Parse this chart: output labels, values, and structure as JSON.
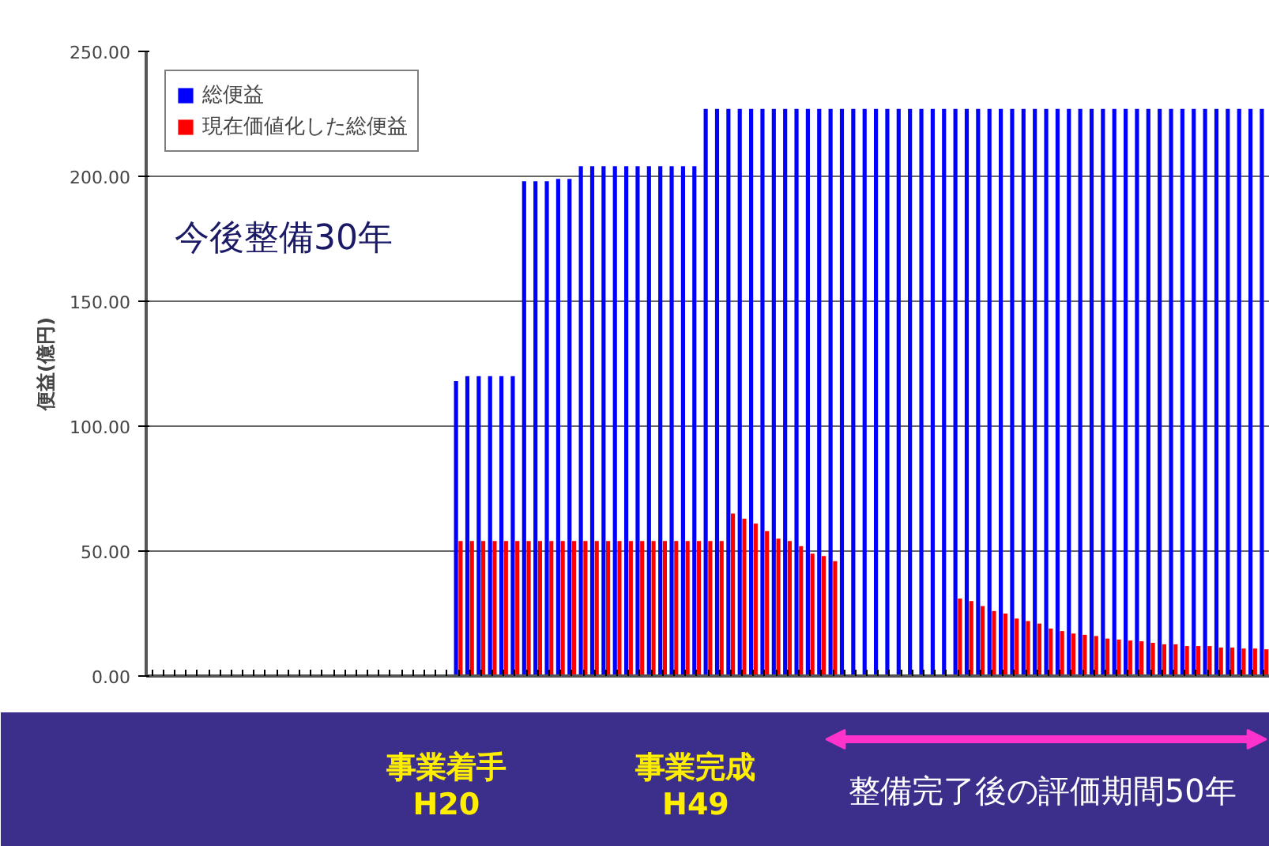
{
  "chart_data": {
    "type": "bar",
    "ylabel": "便益(億円)",
    "categories": [
      null,
      null,
      null,
      null,
      null,
      null,
      null,
      null,
      null,
      null,
      null,
      null,
      null,
      null,
      null,
      null,
      null,
      null,
      null,
      null,
      null,
      null,
      null,
      null,
      null,
      null,
      null,
      null,
      null,
      null,
      null,
      null,
      null,
      null,
      null,
      null,
      null,
      null,
      null,
      null,
      null,
      null,
      null,
      null,
      null,
      null,
      null,
      null,
      null,
      null,
      null,
      null,
      null,
      null,
      null,
      null,
      null,
      null,
      null,
      null,
      null,
      null,
      null,
      null,
      null,
      null,
      null,
      null,
      null,
      null,
      null,
      null,
      null,
      null,
      null,
      null,
      null,
      null,
      null,
      null,
      null,
      null,
      null,
      null,
      null,
      null,
      null,
      null,
      null,
      null,
      null,
      null,
      null,
      null,
      null,
      null,
      null,
      null,
      null
    ],
    "series": [
      {
        "name": "総便益",
        "color": "#0000ff",
        "values": [
          null,
          null,
          null,
          null,
          null,
          null,
          null,
          null,
          null,
          null,
          null,
          null,
          null,
          null,
          null,
          null,
          null,
          null,
          null,
          null,
          null,
          null,
          null,
          null,
          null,
          null,
          null,
          118,
          120,
          120,
          120,
          120,
          120,
          198,
          198,
          198,
          199,
          199,
          204,
          204,
          204,
          204,
          204,
          204,
          204,
          204,
          204,
          204,
          204,
          227,
          227,
          227,
          227,
          227,
          227,
          227,
          227,
          227,
          227,
          227,
          227,
          227,
          227,
          227,
          227,
          227,
          227,
          227,
          227,
          227,
          227,
          227,
          227,
          227,
          227,
          227,
          227,
          227,
          227,
          227,
          227,
          227,
          227,
          227,
          227,
          227,
          227,
          227,
          227,
          227,
          227,
          227,
          227,
          227,
          227,
          227,
          227,
          227,
          227
        ]
      },
      {
        "name": "現在価値化した総便益",
        "color": "#ff0000",
        "values": [
          null,
          null,
          null,
          null,
          null,
          null,
          null,
          null,
          null,
          null,
          null,
          null,
          null,
          null,
          null,
          null,
          null,
          null,
          null,
          null,
          null,
          null,
          null,
          null,
          null,
          null,
          null,
          54,
          54,
          54,
          54,
          54,
          54,
          54,
          54,
          54,
          54,
          54,
          54,
          54,
          54,
          54,
          54,
          54,
          54,
          54,
          54,
          54,
          54,
          54,
          54,
          65,
          63,
          61,
          58,
          55,
          54,
          52,
          49,
          48,
          46,
          null,
          null,
          null,
          null,
          null,
          null,
          null,
          null,
          null,
          null,
          31,
          30,
          28,
          26,
          25,
          23,
          22,
          21,
          19,
          18,
          17,
          16.5,
          16,
          15,
          14.6,
          14.2,
          13.9,
          13.3,
          12.7,
          12.7,
          12,
          12,
          12,
          11.4,
          11.4,
          11,
          11,
          10.7
        ]
      }
    ],
    "ylim": [
      0,
      250
    ],
    "yticks": [
      {
        "value": 0,
        "label": "0.00"
      },
      {
        "value": 50,
        "label": "50.00"
      },
      {
        "value": 100,
        "label": "100.00"
      },
      {
        "value": 150,
        "label": "150.00"
      },
      {
        "value": 200,
        "label": "200.00"
      },
      {
        "value": 250,
        "label": "250.00"
      }
    ],
    "grid": "y",
    "legend": "top left",
    "annotations": [
      "今後整備30年",
      "整備完了後の評価期間50年",
      "事業着手\nH20",
      "事業完成\nH49"
    ]
  }
}
